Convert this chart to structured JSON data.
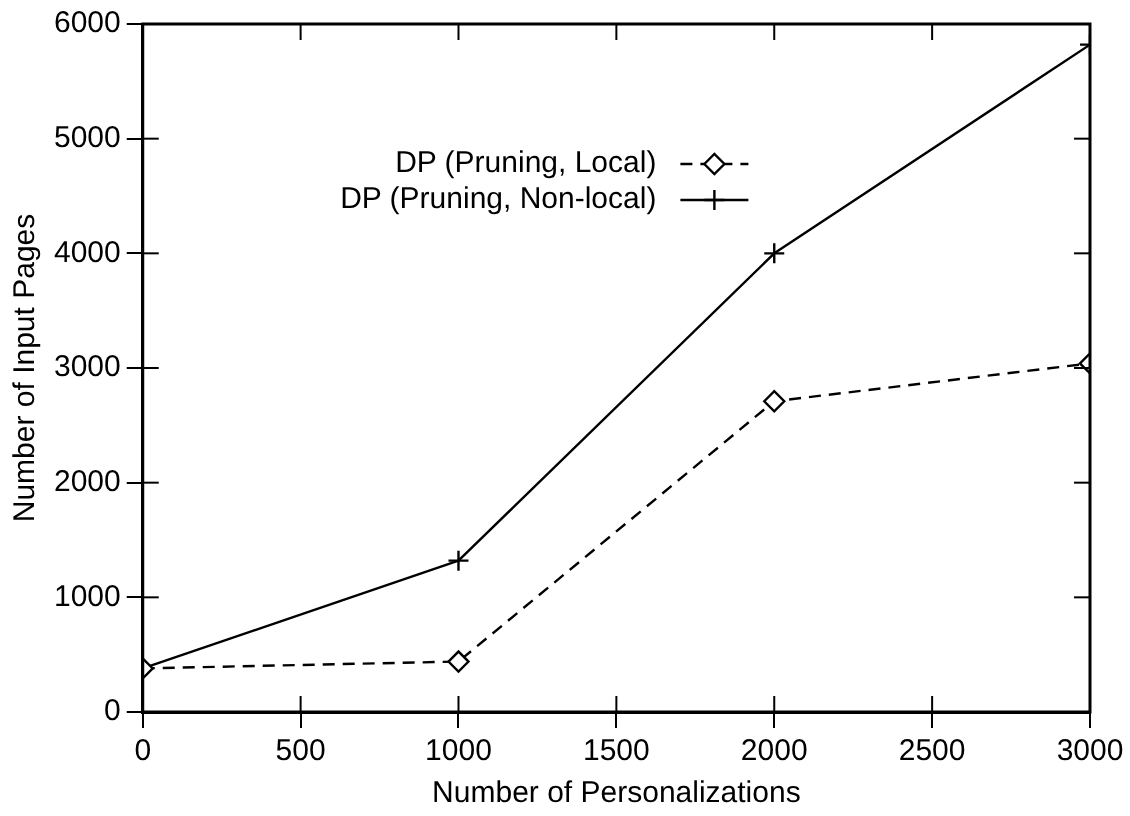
{
  "chart_data": {
    "type": "line",
    "xlabel": "Number of Personalizations",
    "ylabel": "Number of Input Pages",
    "x": [
      0,
      1000,
      2000,
      3000
    ],
    "xlim": [
      0,
      3000
    ],
    "xticks": [
      0,
      500,
      1000,
      1500,
      2000,
      2500,
      3000
    ],
    "ylim": [
      0,
      6000
    ],
    "yticks": [
      0,
      1000,
      2000,
      3000,
      4000,
      5000,
      6000
    ],
    "grid": false,
    "legend": "top left",
    "series": [
      {
        "name": "DP (Pruning, Local)",
        "color": "#000000",
        "marker": "diamond",
        "line_style": "dashed",
        "values": [
          380,
          440,
          2710,
          3040
        ]
      },
      {
        "name": "DP (Pruning, Non-local)",
        "color": "#000000",
        "marker": "cross",
        "line_style": "solid",
        "values": [
          380,
          1320,
          4000,
          5820
        ]
      }
    ]
  }
}
